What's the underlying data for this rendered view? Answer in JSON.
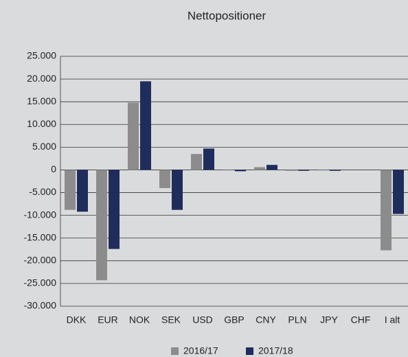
{
  "chart_data": {
    "type": "bar",
    "title": "Nettopositioner",
    "categories": [
      "DKK",
      "EUR",
      "NOK",
      "SEK",
      "USD",
      "GBP",
      "CNY",
      "PLN",
      "JPY",
      "CHF",
      "I alt"
    ],
    "series": [
      {
        "name": "2016/17",
        "color": "#8c8c8c",
        "values": [
          -8800,
          -24300,
          14800,
          -4000,
          3500,
          -100,
          600,
          -200,
          -100,
          0,
          -17700
        ]
      },
      {
        "name": "2017/18",
        "color": "#1f2d5c",
        "values": [
          -9200,
          -17400,
          19500,
          -8800,
          4700,
          -300,
          1100,
          -200,
          -200,
          0,
          -9700
        ]
      }
    ],
    "ylim": [
      -30000,
      25000
    ],
    "yticks": [
      {
        "value": -30000,
        "label": "-30.000"
      },
      {
        "value": -25000,
        "label": "-25.000"
      },
      {
        "value": -20000,
        "label": "-20.000"
      },
      {
        "value": -15000,
        "label": "-15.000"
      },
      {
        "value": -10000,
        "label": "-10.000"
      },
      {
        "value": -5000,
        "label": "-5.000"
      },
      0,
      {
        "value": 5000,
        "label": "5.000"
      },
      {
        "value": 10000,
        "label": "10.000"
      },
      {
        "value": 15000,
        "label": "15.000"
      },
      {
        "value": 20000,
        "label": "20.000"
      },
      {
        "value": 25000,
        "label": "25.000"
      }
    ],
    "grid": true,
    "legend": "bottom"
  }
}
